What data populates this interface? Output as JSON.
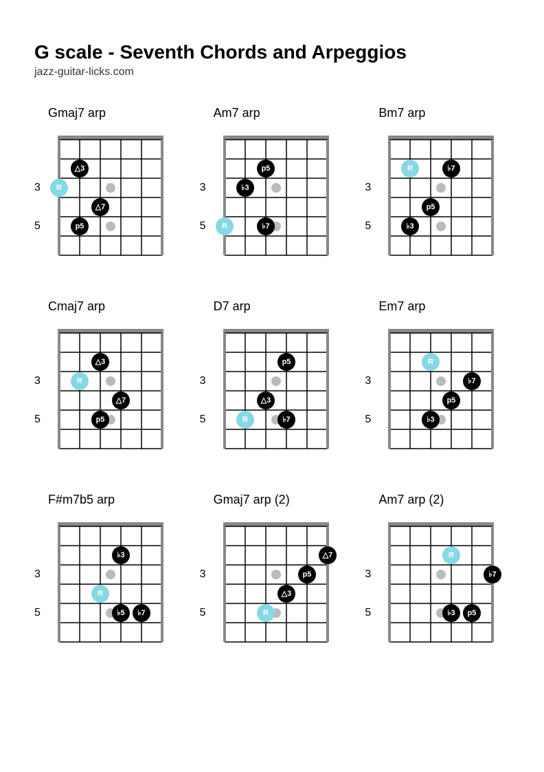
{
  "title": "G scale - Seventh Chords and Arpeggios",
  "subtitle": "jazz-guitar-licks.com",
  "colors": {
    "root": "#87d8e6",
    "note": "#000000",
    "noteText": "#ffffff",
    "rootText": "#ffffff",
    "grid": "#000000",
    "gridThick": "#888888",
    "marker": "#bbbbbb",
    "bg": "#ffffff"
  },
  "layout": {
    "strings": 6,
    "fretsShown": 6,
    "stringSpacing": 30,
    "fretSpacing": 28,
    "noteRadius": 13,
    "markerRadius": 7,
    "nutHeight": 6
  },
  "fretLabels": [
    {
      "fret": 3,
      "text": "3"
    },
    {
      "fret": 5,
      "text": "5"
    }
  ],
  "inlayFrets": [
    3,
    5
  ],
  "diagrams": [
    {
      "name": "Gmaj7 arp",
      "notes": [
        {
          "string": 6,
          "fret": 3,
          "label": "R",
          "type": "root"
        },
        {
          "string": 5,
          "fret": 2,
          "label": "△3",
          "type": "note"
        },
        {
          "string": 5,
          "fret": 5,
          "label": "p5",
          "type": "note"
        },
        {
          "string": 4,
          "fret": 4,
          "label": "△7",
          "type": "note"
        }
      ]
    },
    {
      "name": "Am7 arp",
      "notes": [
        {
          "string": 6,
          "fret": 5,
          "label": "R",
          "type": "root"
        },
        {
          "string": 5,
          "fret": 3,
          "label": "♭3",
          "type": "note"
        },
        {
          "string": 4,
          "fret": 2,
          "label": "p5",
          "type": "note"
        },
        {
          "string": 4,
          "fret": 5,
          "label": "♭7",
          "type": "note"
        }
      ]
    },
    {
      "name": "Bm7 arp",
      "notes": [
        {
          "string": 5,
          "fret": 2,
          "label": "R",
          "type": "root"
        },
        {
          "string": 5,
          "fret": 5,
          "label": "♭3",
          "type": "note"
        },
        {
          "string": 4,
          "fret": 4,
          "label": "p5",
          "type": "note"
        },
        {
          "string": 3,
          "fret": 2,
          "label": "♭7",
          "type": "note"
        }
      ]
    },
    {
      "name": "Cmaj7 arp",
      "notes": [
        {
          "string": 5,
          "fret": 3,
          "label": "R",
          "type": "root"
        },
        {
          "string": 4,
          "fret": 2,
          "label": "△3",
          "type": "note"
        },
        {
          "string": 4,
          "fret": 5,
          "label": "p5",
          "type": "note"
        },
        {
          "string": 3,
          "fret": 4,
          "label": "△7",
          "type": "note"
        }
      ]
    },
    {
      "name": "D7 arp",
      "notes": [
        {
          "string": 5,
          "fret": 5,
          "label": "R",
          "type": "root"
        },
        {
          "string": 4,
          "fret": 4,
          "label": "△3",
          "type": "note"
        },
        {
          "string": 3,
          "fret": 2,
          "label": "p5",
          "type": "note"
        },
        {
          "string": 3,
          "fret": 5,
          "label": "♭7",
          "type": "note"
        }
      ]
    },
    {
      "name": "Em7 arp",
      "notes": [
        {
          "string": 4,
          "fret": 2,
          "label": "R",
          "type": "root"
        },
        {
          "string": 4,
          "fret": 5,
          "label": "♭3",
          "type": "note"
        },
        {
          "string": 3,
          "fret": 4,
          "label": "p5",
          "type": "note"
        },
        {
          "string": 2,
          "fret": 3,
          "label": "♭7",
          "type": "note"
        }
      ]
    },
    {
      "name": "F#m7b5 arp",
      "notes": [
        {
          "string": 4,
          "fret": 4,
          "label": "R",
          "type": "root"
        },
        {
          "string": 3,
          "fret": 2,
          "label": "♭3",
          "type": "note"
        },
        {
          "string": 3,
          "fret": 5,
          "label": "♭5",
          "type": "note"
        },
        {
          "string": 2,
          "fret": 5,
          "label": "♭7",
          "type": "note"
        }
      ]
    },
    {
      "name": "Gmaj7 arp (2)",
      "notes": [
        {
          "string": 4,
          "fret": 5,
          "label": "R",
          "type": "root"
        },
        {
          "string": 3,
          "fret": 4,
          "label": "△3",
          "type": "note"
        },
        {
          "string": 2,
          "fret": 3,
          "label": "p5",
          "type": "note"
        },
        {
          "string": 1,
          "fret": 2,
          "label": "△7",
          "type": "note"
        }
      ]
    },
    {
      "name": "Am7 arp (2)",
      "notes": [
        {
          "string": 3,
          "fret": 2,
          "label": "R",
          "type": "root"
        },
        {
          "string": 3,
          "fret": 5,
          "label": "♭3",
          "type": "note"
        },
        {
          "string": 2,
          "fret": 5,
          "label": "p5",
          "type": "note"
        },
        {
          "string": 1,
          "fret": 3,
          "label": "♭7",
          "type": "note"
        }
      ]
    }
  ]
}
